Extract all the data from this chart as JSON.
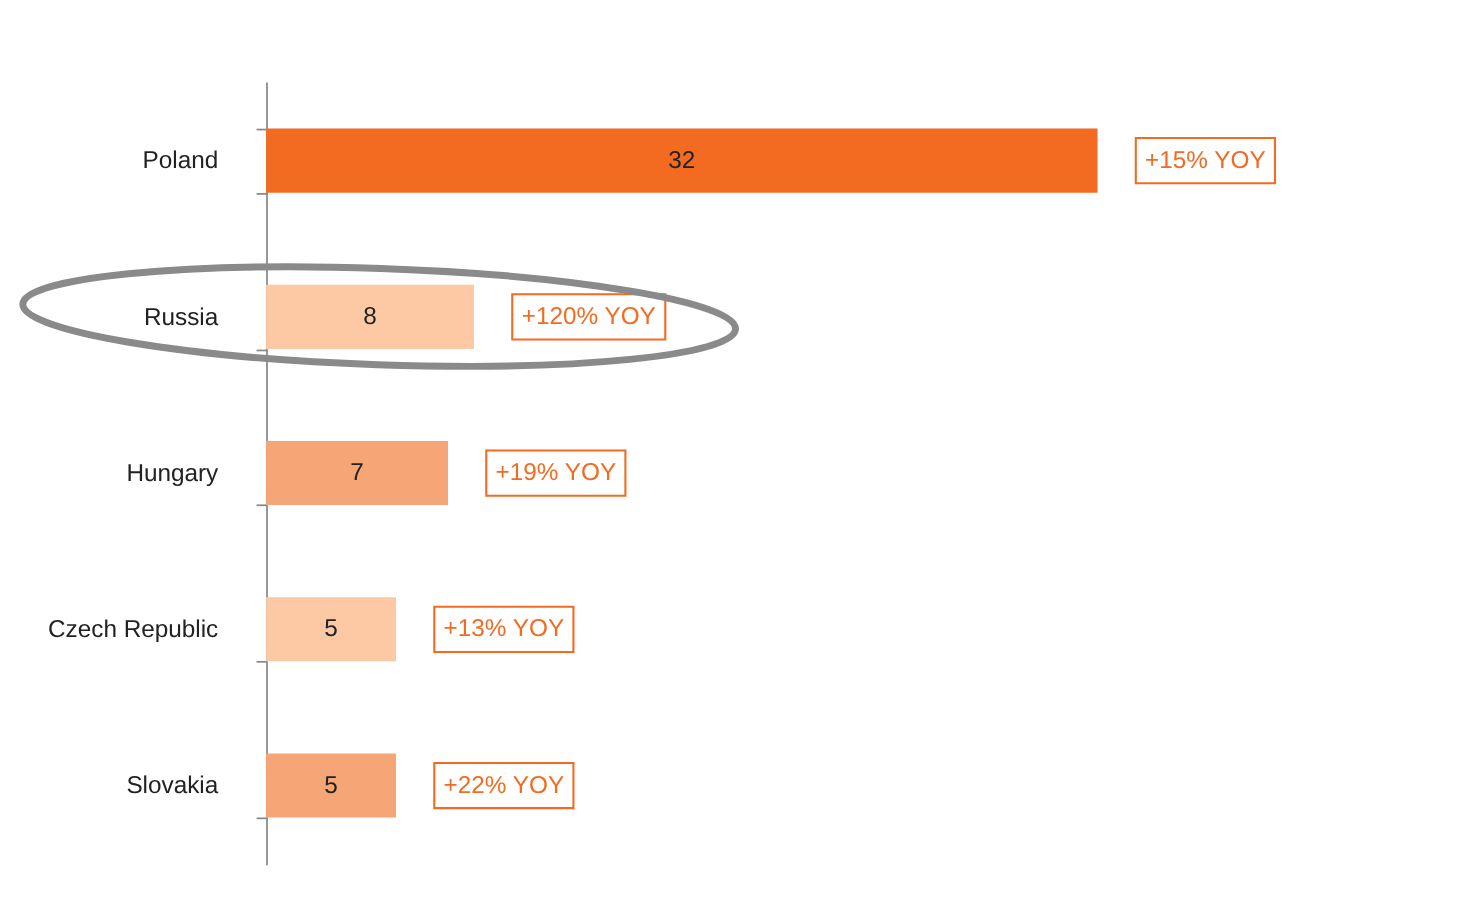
{
  "chart_data": {
    "type": "bar",
    "orientation": "horizontal",
    "data_labels": true,
    "grid": false,
    "tick_labels": "y",
    "categories": [
      "Poland",
      "Russia",
      "Hungary",
      "Czech Republic",
      "Slovakia"
    ],
    "values": [
      32,
      8,
      7,
      5,
      5
    ],
    "colors": [
      "#f26b21",
      "#fdc9a5",
      "#f6a676",
      "#fdc9a5",
      "#f6a676"
    ],
    "annotations": [
      {
        "text": "+15% YOY",
        "x": 32,
        "y": "Poland"
      },
      {
        "text": "+120% YOY",
        "x": 8,
        "y": "Russia"
      },
      {
        "text": "+19% YOY",
        "x": 7,
        "y": "Hungary"
      },
      {
        "text": "+13% YOY",
        "x": 5,
        "y": "Czech Republic"
      },
      {
        "text": "+22% YOY",
        "x": 5,
        "y": "Slovakia"
      }
    ]
  }
}
